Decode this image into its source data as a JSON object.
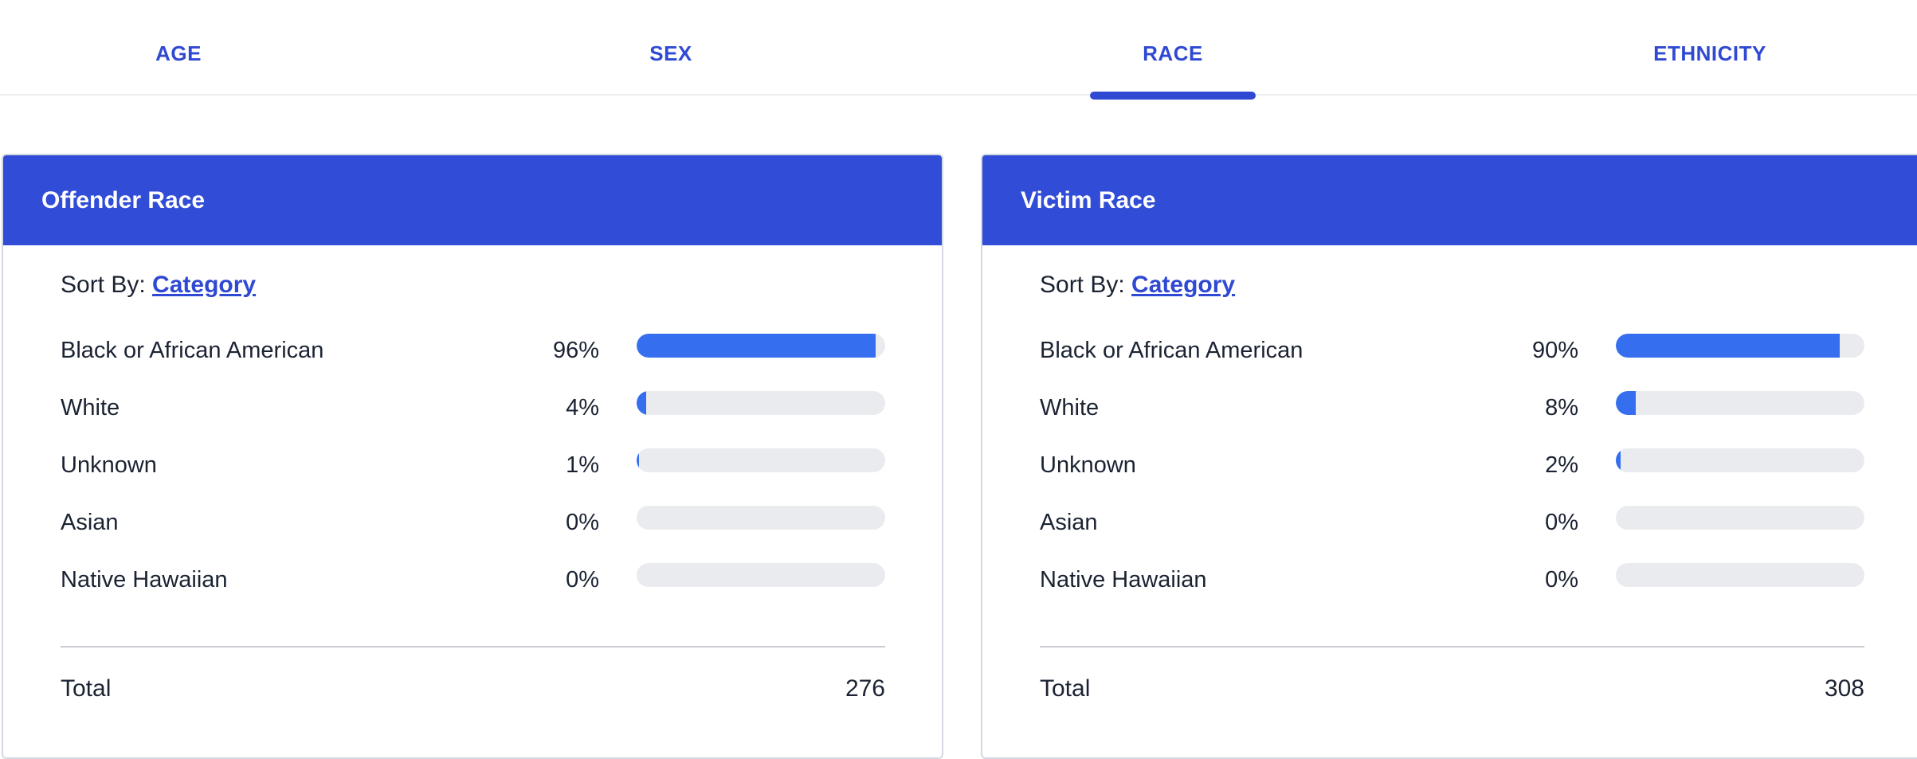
{
  "tabs": [
    {
      "label": "AGE"
    },
    {
      "label": "SEX"
    },
    {
      "label": "RACE",
      "active": true
    },
    {
      "label": "ETHNICITY"
    }
  ],
  "accent_color": "#3049d3",
  "bar_color": "#356ff0",
  "panels": [
    {
      "title": "Offender Race",
      "sort_prefix": "Sort By:",
      "sort_value": "Category",
      "rows": [
        {
          "label": "Black or African American",
          "pct": "96%",
          "value": 0.96
        },
        {
          "label": "White",
          "pct": "4%",
          "value": 0.04
        },
        {
          "label": "Unknown",
          "pct": "1%",
          "value": 0.01
        },
        {
          "label": "Asian",
          "pct": "0%",
          "value": 0
        },
        {
          "label": "Native Hawaiian",
          "pct": "0%",
          "value": 0
        }
      ],
      "total_label": "Total",
      "total_value": "276"
    },
    {
      "title": "Victim Race",
      "sort_prefix": "Sort By:",
      "sort_value": "Category",
      "rows": [
        {
          "label": "Black or African American",
          "pct": "90%",
          "value": 0.9
        },
        {
          "label": "White",
          "pct": "8%",
          "value": 0.08
        },
        {
          "label": "Unknown",
          "pct": "2%",
          "value": 0.02
        },
        {
          "label": "Asian",
          "pct": "0%",
          "value": 0
        },
        {
          "label": "Native Hawaiian",
          "pct": "0%",
          "value": 0
        }
      ],
      "total_label": "Total",
      "total_value": "308"
    }
  ]
}
